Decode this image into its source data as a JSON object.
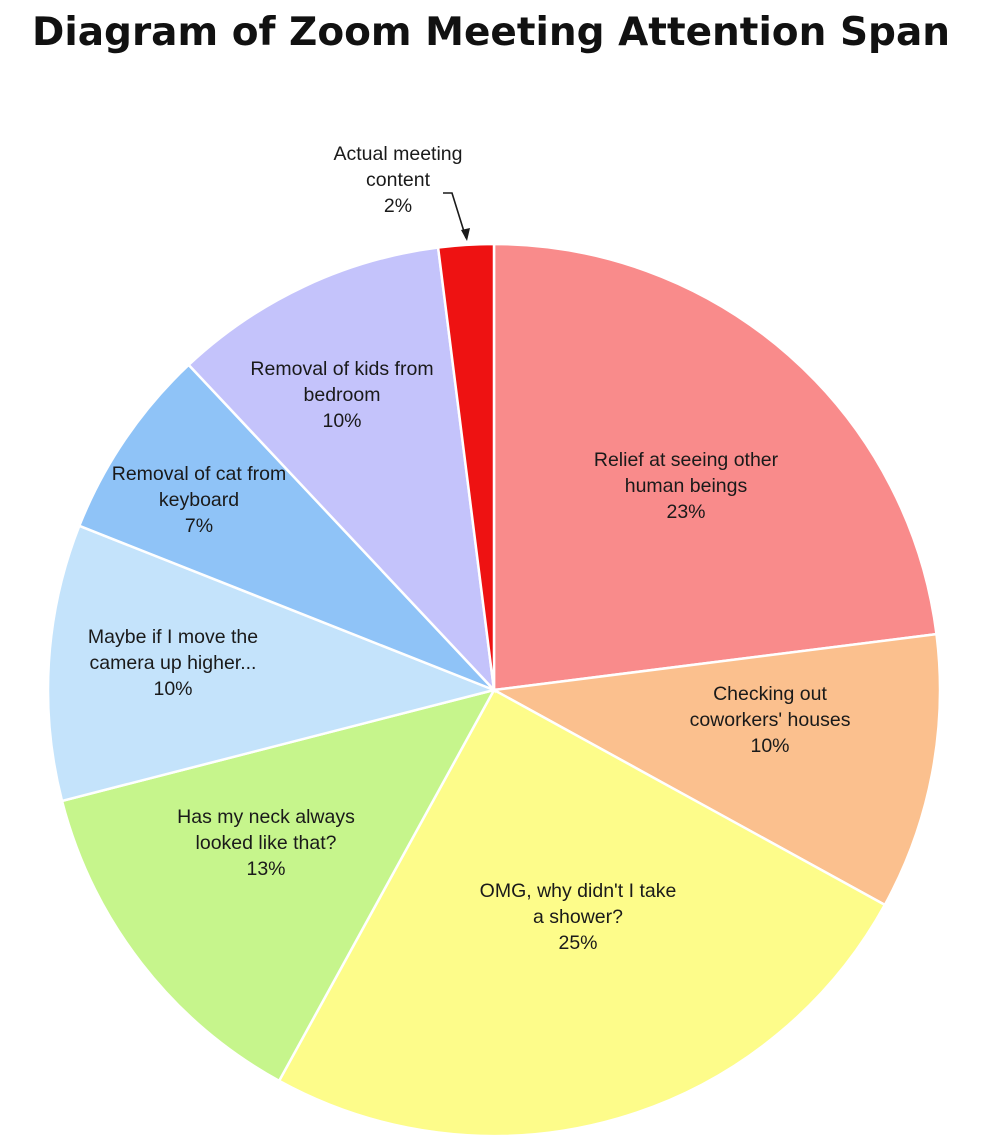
{
  "title": "Diagram of Zoom Meeting Attention Span",
  "chart_data": {
    "type": "pie",
    "title": "Diagram of Zoom Meeting Attention Span",
    "start_angle_deg": 0,
    "direction": "clockwise",
    "slices": [
      {
        "label_lines": [
          "Relief at seeing other",
          "human beings"
        ],
        "value": 23,
        "value_label": "23%",
        "color": "#f98b8b"
      },
      {
        "label_lines": [
          "Checking out",
          "coworkers' houses"
        ],
        "value": 10,
        "value_label": "10%",
        "color": "#fbc08e"
      },
      {
        "label_lines": [
          "OMG, why didn't I take",
          "a shower?"
        ],
        "value": 25,
        "value_label": "25%",
        "color": "#fdfc8a"
      },
      {
        "label_lines": [
          "Has my neck always",
          "looked like that?"
        ],
        "value": 13,
        "value_label": "13%",
        "color": "#c6f58c"
      },
      {
        "label_lines": [
          "Maybe if I move the",
          "camera up higher..."
        ],
        "value": 10,
        "value_label": "10%",
        "color": "#c4e3fb"
      },
      {
        "label_lines": [
          "Removal of cat from",
          "keyboard"
        ],
        "value": 7,
        "value_label": "7%",
        "color": "#8fc3f7"
      },
      {
        "label_lines": [
          "Removal of kids from",
          "bedroom"
        ],
        "value": 10,
        "value_label": "10%",
        "color": "#c4c3fb"
      },
      {
        "label_lines": [
          "Actual meeting",
          "content"
        ],
        "value": 2,
        "value_label": "2%",
        "color": "#ee1212",
        "callout": true
      }
    ]
  }
}
